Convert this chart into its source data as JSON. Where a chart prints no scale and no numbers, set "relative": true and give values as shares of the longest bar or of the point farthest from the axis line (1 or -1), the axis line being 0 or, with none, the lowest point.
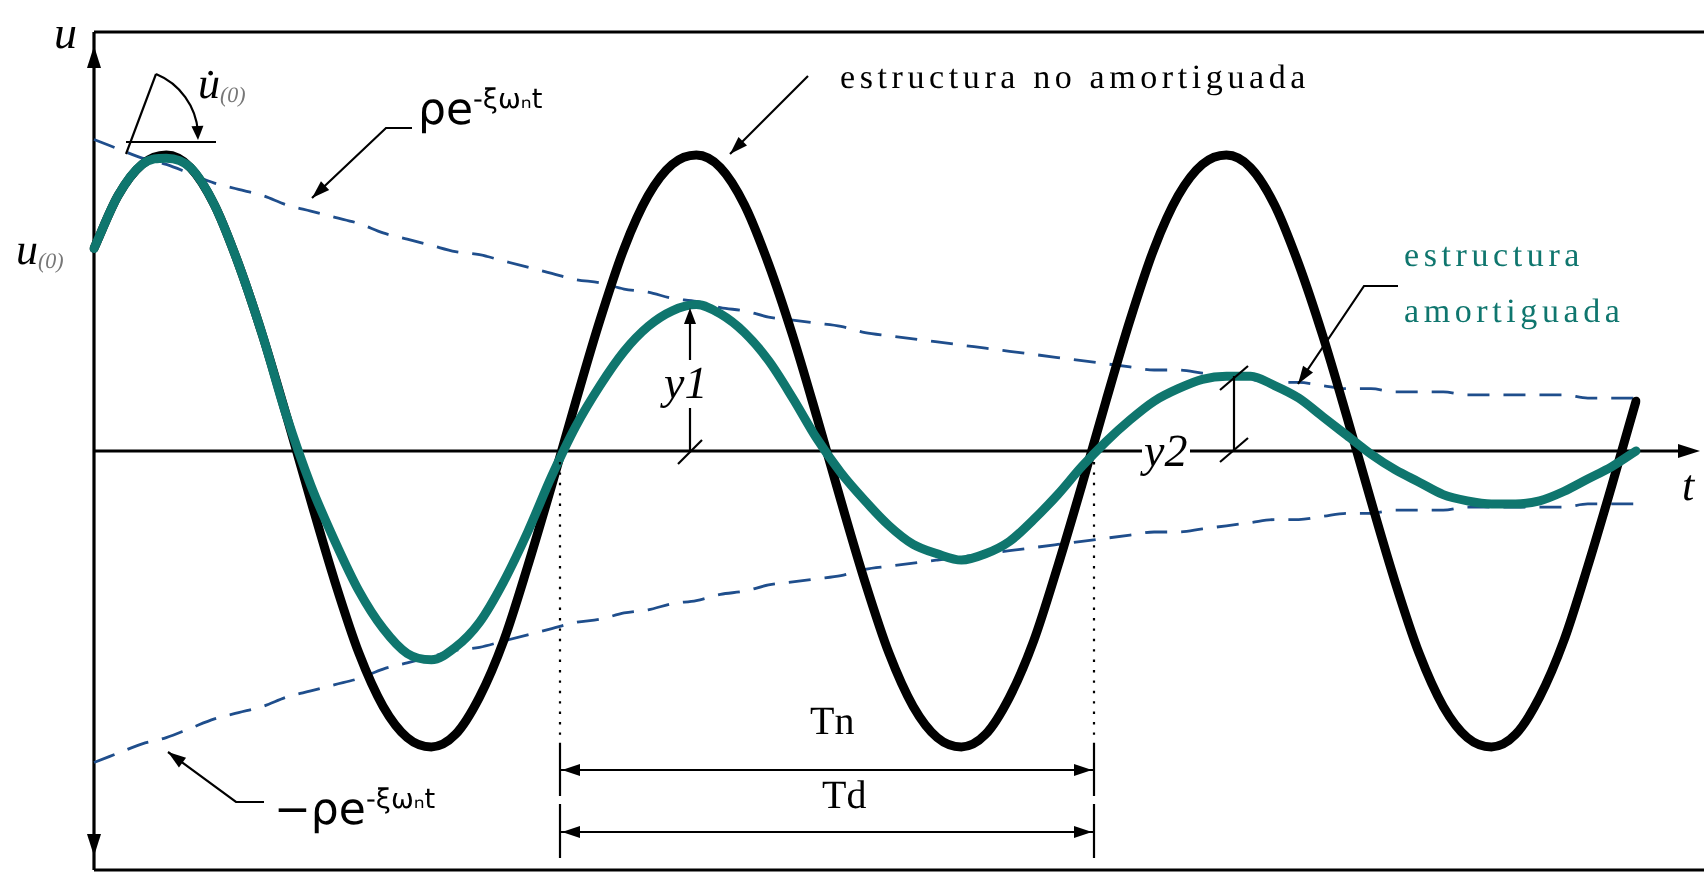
{
  "chart_data": {
    "type": "line",
    "relative": true,
    "xlabel": "t",
    "ylabel": "u",
    "categories": [
      null,
      null,
      null,
      null,
      null,
      null,
      null,
      null,
      null,
      null,
      null,
      null,
      null,
      null,
      null,
      null,
      null,
      null,
      null,
      null,
      null,
      null,
      null,
      null,
      null,
      null,
      null,
      null,
      null,
      null,
      null,
      null,
      null,
      null,
      null,
      null,
      null,
      null,
      null,
      null,
      null,
      null,
      null,
      null,
      null,
      null,
      null,
      null,
      null,
      null,
      null,
      null,
      null,
      null,
      null,
      null,
      null,
      null,
      null,
      null,
      null,
      null,
      null,
      null,
      null
    ],
    "series": [
      {
        "name": "estructura no amortiguada",
        "color": "#000000",
        "values": [
          0.65,
          0.82,
          0.92,
          0.95,
          0.91,
          0.79,
          0.6,
          0.37,
          0.11,
          -0.16,
          -0.42,
          -0.65,
          -0.82,
          -0.92,
          -0.95,
          -0.91,
          -0.79,
          -0.61,
          -0.37,
          -0.11,
          0.16,
          0.42,
          0.65,
          0.82,
          0.92,
          0.95,
          0.91,
          0.79,
          0.6,
          0.37,
          0.11,
          -0.16,
          -0.42,
          -0.65,
          -0.82,
          -0.92,
          -0.95,
          -0.91,
          -0.79,
          -0.61,
          -0.37,
          -0.11,
          0.16,
          0.42,
          0.65,
          0.82,
          0.92,
          0.95,
          0.91,
          0.79,
          0.6,
          0.37,
          0.11,
          -0.16,
          -0.42,
          -0.65,
          -0.82,
          -0.92,
          -0.95,
          -0.91,
          -0.79,
          -0.61,
          -0.37,
          -0.11,
          0.16
        ]
      },
      {
        "name": "estructura amortiguada",
        "color": "#0f766e",
        "values": [
          0.65,
          0.82,
          0.92,
          0.94,
          0.91,
          0.79,
          0.6,
          0.37,
          0.11,
          -0.11,
          -0.29,
          -0.45,
          -0.57,
          -0.65,
          -0.67,
          -0.63,
          -0.55,
          -0.42,
          -0.26,
          -0.08,
          0.08,
          0.21,
          0.32,
          0.4,
          0.45,
          0.47,
          0.44,
          0.38,
          0.29,
          0.17,
          0.04,
          -0.07,
          -0.16,
          -0.24,
          -0.3,
          -0.33,
          -0.35,
          -0.33,
          -0.29,
          -0.22,
          -0.14,
          -0.05,
          0.03,
          0.1,
          0.16,
          0.2,
          0.23,
          0.24,
          0.24,
          0.21,
          0.17,
          0.11,
          0.05,
          -0.01,
          -0.06,
          -0.1,
          -0.14,
          -0.16,
          -0.17,
          -0.17,
          -0.16,
          -0.13,
          -0.09,
          -0.05,
          0.0
        ]
      },
      {
        "name": "ρe$^{-ξωₙt}$",
        "color": "#1f4e8c",
        "line_style": "dashed",
        "values": [
          1.0,
          0.97,
          0.94,
          0.92,
          0.89,
          0.86,
          0.84,
          0.82,
          0.79,
          0.77,
          0.75,
          0.73,
          0.7,
          0.68,
          0.66,
          0.64,
          0.63,
          0.61,
          0.59,
          0.57,
          0.55,
          0.54,
          0.52,
          0.51,
          0.49,
          0.48,
          0.46,
          0.45,
          0.43,
          0.42,
          0.41,
          0.4,
          0.38,
          0.37,
          0.36,
          0.35,
          0.34,
          0.33,
          0.32,
          0.31,
          0.3,
          0.29,
          0.28,
          0.27,
          0.26,
          0.26,
          0.25,
          0.24,
          0.23,
          0.22,
          0.22,
          0.21,
          0.2,
          0.2,
          0.19,
          0.19,
          0.19,
          0.18,
          0.18,
          0.18,
          0.18,
          0.18,
          0.17,
          0.17,
          0.17
        ]
      },
      {
        "name": "−ρe$^{-ξωₙt}$",
        "color": "#1f4e8c",
        "line_style": "dashed",
        "values": [
          -1.0,
          -0.97,
          -0.94,
          -0.92,
          -0.89,
          -0.86,
          -0.84,
          -0.82,
          -0.79,
          -0.77,
          -0.75,
          -0.73,
          -0.7,
          -0.68,
          -0.66,
          -0.64,
          -0.63,
          -0.61,
          -0.59,
          -0.57,
          -0.55,
          -0.54,
          -0.52,
          -0.51,
          -0.49,
          -0.48,
          -0.46,
          -0.45,
          -0.43,
          -0.42,
          -0.41,
          -0.4,
          -0.38,
          -0.37,
          -0.36,
          -0.35,
          -0.34,
          -0.33,
          -0.32,
          -0.31,
          -0.3,
          -0.29,
          -0.28,
          -0.27,
          -0.26,
          -0.26,
          -0.25,
          -0.24,
          -0.23,
          -0.22,
          -0.22,
          -0.21,
          -0.2,
          -0.2,
          -0.19,
          -0.19,
          -0.19,
          -0.18,
          -0.18,
          -0.18,
          -0.18,
          -0.18,
          -0.17,
          -0.17,
          -0.17
        ]
      }
    ],
    "annotations": [
      "u̇$_{(0)}$",
      "u$_{(0)}$",
      "y1",
      "y2",
      "Tn",
      "Td"
    ]
  }
}
